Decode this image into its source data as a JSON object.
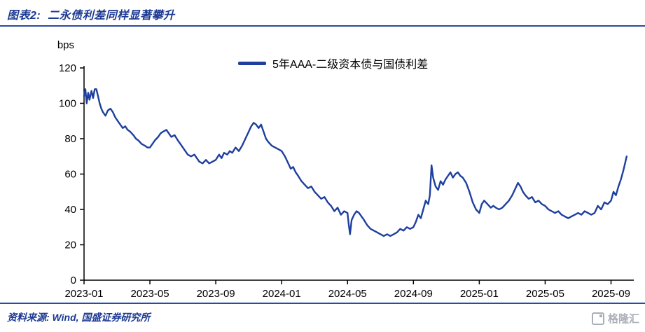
{
  "header": {
    "title": "图表2:  二永债利差同样显著攀升"
  },
  "chart_data": {
    "type": "line",
    "title": "图表2: 二永债利差同样显著攀升",
    "ylabel": "bps",
    "xlabel": "",
    "legend": "5年AAA-二级资本债与国债利差",
    "legend_position": "top-center",
    "grid": false,
    "line_color": "#1e3f9e",
    "ylim": [
      0,
      120
    ],
    "y_ticks": [
      0,
      20,
      40,
      60,
      80,
      100,
      120
    ],
    "x_range_months": [
      0,
      33
    ],
    "x_tick_months": [
      0,
      4,
      8,
      12,
      16,
      20,
      24,
      28,
      32
    ],
    "x_tick_labels": [
      "2023-01",
      "2023-05",
      "2023-09",
      "2024-01",
      "2024-05",
      "2024-09",
      "2025-01",
      "2025-05",
      "2025-09"
    ],
    "points": [
      [
        0.0,
        104
      ],
      [
        0.08,
        108
      ],
      [
        0.16,
        100
      ],
      [
        0.25,
        106
      ],
      [
        0.33,
        102
      ],
      [
        0.45,
        107
      ],
      [
        0.55,
        103
      ],
      [
        0.65,
        108
      ],
      [
        0.75,
        108
      ],
      [
        0.85,
        104
      ],
      [
        0.95,
        100
      ],
      [
        1.05,
        97
      ],
      [
        1.15,
        95
      ],
      [
        1.3,
        93
      ],
      [
        1.45,
        96
      ],
      [
        1.6,
        97
      ],
      [
        1.75,
        95
      ],
      [
        1.9,
        92
      ],
      [
        2.05,
        90
      ],
      [
        2.2,
        88
      ],
      [
        2.35,
        86
      ],
      [
        2.5,
        87
      ],
      [
        2.65,
        85
      ],
      [
        2.8,
        84
      ],
      [
        3.0,
        82
      ],
      [
        3.15,
        80
      ],
      [
        3.3,
        79
      ],
      [
        3.5,
        77
      ],
      [
        3.7,
        76
      ],
      [
        3.85,
        75
      ],
      [
        4.0,
        75
      ],
      [
        4.15,
        77
      ],
      [
        4.3,
        79
      ],
      [
        4.5,
        81
      ],
      [
        4.65,
        83
      ],
      [
        4.8,
        84
      ],
      [
        5.0,
        85
      ],
      [
        5.15,
        83
      ],
      [
        5.3,
        81
      ],
      [
        5.5,
        82
      ],
      [
        5.7,
        79
      ],
      [
        5.85,
        77
      ],
      [
        6.0,
        75
      ],
      [
        6.15,
        73
      ],
      [
        6.3,
        71
      ],
      [
        6.5,
        70
      ],
      [
        6.7,
        71
      ],
      [
        6.85,
        69
      ],
      [
        7.0,
        67
      ],
      [
        7.2,
        66
      ],
      [
        7.4,
        68
      ],
      [
        7.6,
        66
      ],
      [
        7.8,
        67
      ],
      [
        8.0,
        68
      ],
      [
        8.2,
        71
      ],
      [
        8.35,
        69
      ],
      [
        8.5,
        72
      ],
      [
        8.7,
        71
      ],
      [
        8.85,
        73
      ],
      [
        9.0,
        72
      ],
      [
        9.2,
        75
      ],
      [
        9.4,
        73
      ],
      [
        9.6,
        76
      ],
      [
        9.8,
        80
      ],
      [
        10.0,
        84
      ],
      [
        10.15,
        87
      ],
      [
        10.3,
        89
      ],
      [
        10.45,
        88
      ],
      [
        10.6,
        86
      ],
      [
        10.75,
        88
      ],
      [
        10.9,
        84
      ],
      [
        11.05,
        80
      ],
      [
        11.2,
        78
      ],
      [
        11.4,
        76
      ],
      [
        11.6,
        75
      ],
      [
        11.8,
        74
      ],
      [
        12.0,
        73
      ],
      [
        12.2,
        70
      ],
      [
        12.4,
        66
      ],
      [
        12.55,
        63
      ],
      [
        12.7,
        64
      ],
      [
        12.85,
        61
      ],
      [
        13.0,
        59
      ],
      [
        13.2,
        56
      ],
      [
        13.4,
        54
      ],
      [
        13.6,
        52
      ],
      [
        13.8,
        53
      ],
      [
        14.0,
        50
      ],
      [
        14.2,
        48
      ],
      [
        14.4,
        46
      ],
      [
        14.6,
        47
      ],
      [
        14.8,
        44
      ],
      [
        15.0,
        42
      ],
      [
        15.2,
        39
      ],
      [
        15.4,
        41
      ],
      [
        15.6,
        37
      ],
      [
        15.8,
        39
      ],
      [
        16.0,
        38
      ],
      [
        16.08,
        31
      ],
      [
        16.15,
        26
      ],
      [
        16.25,
        34
      ],
      [
        16.4,
        37
      ],
      [
        16.55,
        39
      ],
      [
        16.7,
        38
      ],
      [
        16.85,
        36
      ],
      [
        17.0,
        34
      ],
      [
        17.2,
        31
      ],
      [
        17.4,
        29
      ],
      [
        17.6,
        28
      ],
      [
        17.8,
        27
      ],
      [
        18.0,
        26
      ],
      [
        18.2,
        25
      ],
      [
        18.4,
        26
      ],
      [
        18.6,
        25
      ],
      [
        18.8,
        26
      ],
      [
        19.0,
        27
      ],
      [
        19.2,
        29
      ],
      [
        19.4,
        28
      ],
      [
        19.6,
        30
      ],
      [
        19.8,
        29
      ],
      [
        20.0,
        30
      ],
      [
        20.15,
        33
      ],
      [
        20.3,
        37
      ],
      [
        20.45,
        35
      ],
      [
        20.6,
        40
      ],
      [
        20.75,
        45
      ],
      [
        20.9,
        43
      ],
      [
        21.0,
        48
      ],
      [
        21.1,
        65
      ],
      [
        21.2,
        58
      ],
      [
        21.35,
        53
      ],
      [
        21.5,
        51
      ],
      [
        21.65,
        56
      ],
      [
        21.8,
        54
      ],
      [
        21.95,
        57
      ],
      [
        22.1,
        59
      ],
      [
        22.25,
        61
      ],
      [
        22.4,
        58
      ],
      [
        22.55,
        60
      ],
      [
        22.7,
        61
      ],
      [
        22.85,
        59
      ],
      [
        23.0,
        58
      ],
      [
        23.2,
        55
      ],
      [
        23.4,
        50
      ],
      [
        23.6,
        44
      ],
      [
        23.8,
        40
      ],
      [
        24.0,
        38
      ],
      [
        24.15,
        43
      ],
      [
        24.3,
        45
      ],
      [
        24.5,
        43
      ],
      [
        24.7,
        41
      ],
      [
        24.85,
        42
      ],
      [
        25.0,
        41
      ],
      [
        25.2,
        40
      ],
      [
        25.4,
        41
      ],
      [
        25.6,
        43
      ],
      [
        25.8,
        45
      ],
      [
        26.0,
        48
      ],
      [
        26.2,
        52
      ],
      [
        26.35,
        55
      ],
      [
        26.5,
        53
      ],
      [
        26.65,
        50
      ],
      [
        26.8,
        48
      ],
      [
        27.0,
        46
      ],
      [
        27.2,
        47
      ],
      [
        27.4,
        44
      ],
      [
        27.6,
        45
      ],
      [
        27.8,
        43
      ],
      [
        28.0,
        42
      ],
      [
        28.2,
        40
      ],
      [
        28.4,
        39
      ],
      [
        28.6,
        38
      ],
      [
        28.8,
        39
      ],
      [
        29.0,
        37
      ],
      [
        29.2,
        36
      ],
      [
        29.4,
        35
      ],
      [
        29.6,
        36
      ],
      [
        29.8,
        37
      ],
      [
        30.0,
        38
      ],
      [
        30.2,
        37
      ],
      [
        30.4,
        39
      ],
      [
        30.6,
        38
      ],
      [
        30.8,
        37
      ],
      [
        31.0,
        38
      ],
      [
        31.2,
        42
      ],
      [
        31.4,
        40
      ],
      [
        31.6,
        44
      ],
      [
        31.8,
        43
      ],
      [
        32.0,
        45
      ],
      [
        32.15,
        50
      ],
      [
        32.3,
        48
      ],
      [
        32.45,
        53
      ],
      [
        32.6,
        57
      ],
      [
        32.75,
        62
      ],
      [
        32.85,
        66
      ],
      [
        32.95,
        70
      ]
    ]
  },
  "footer": {
    "source_label": "资料来源: Wind, 国盛证券研究所",
    "logo_text": "格隆汇"
  }
}
